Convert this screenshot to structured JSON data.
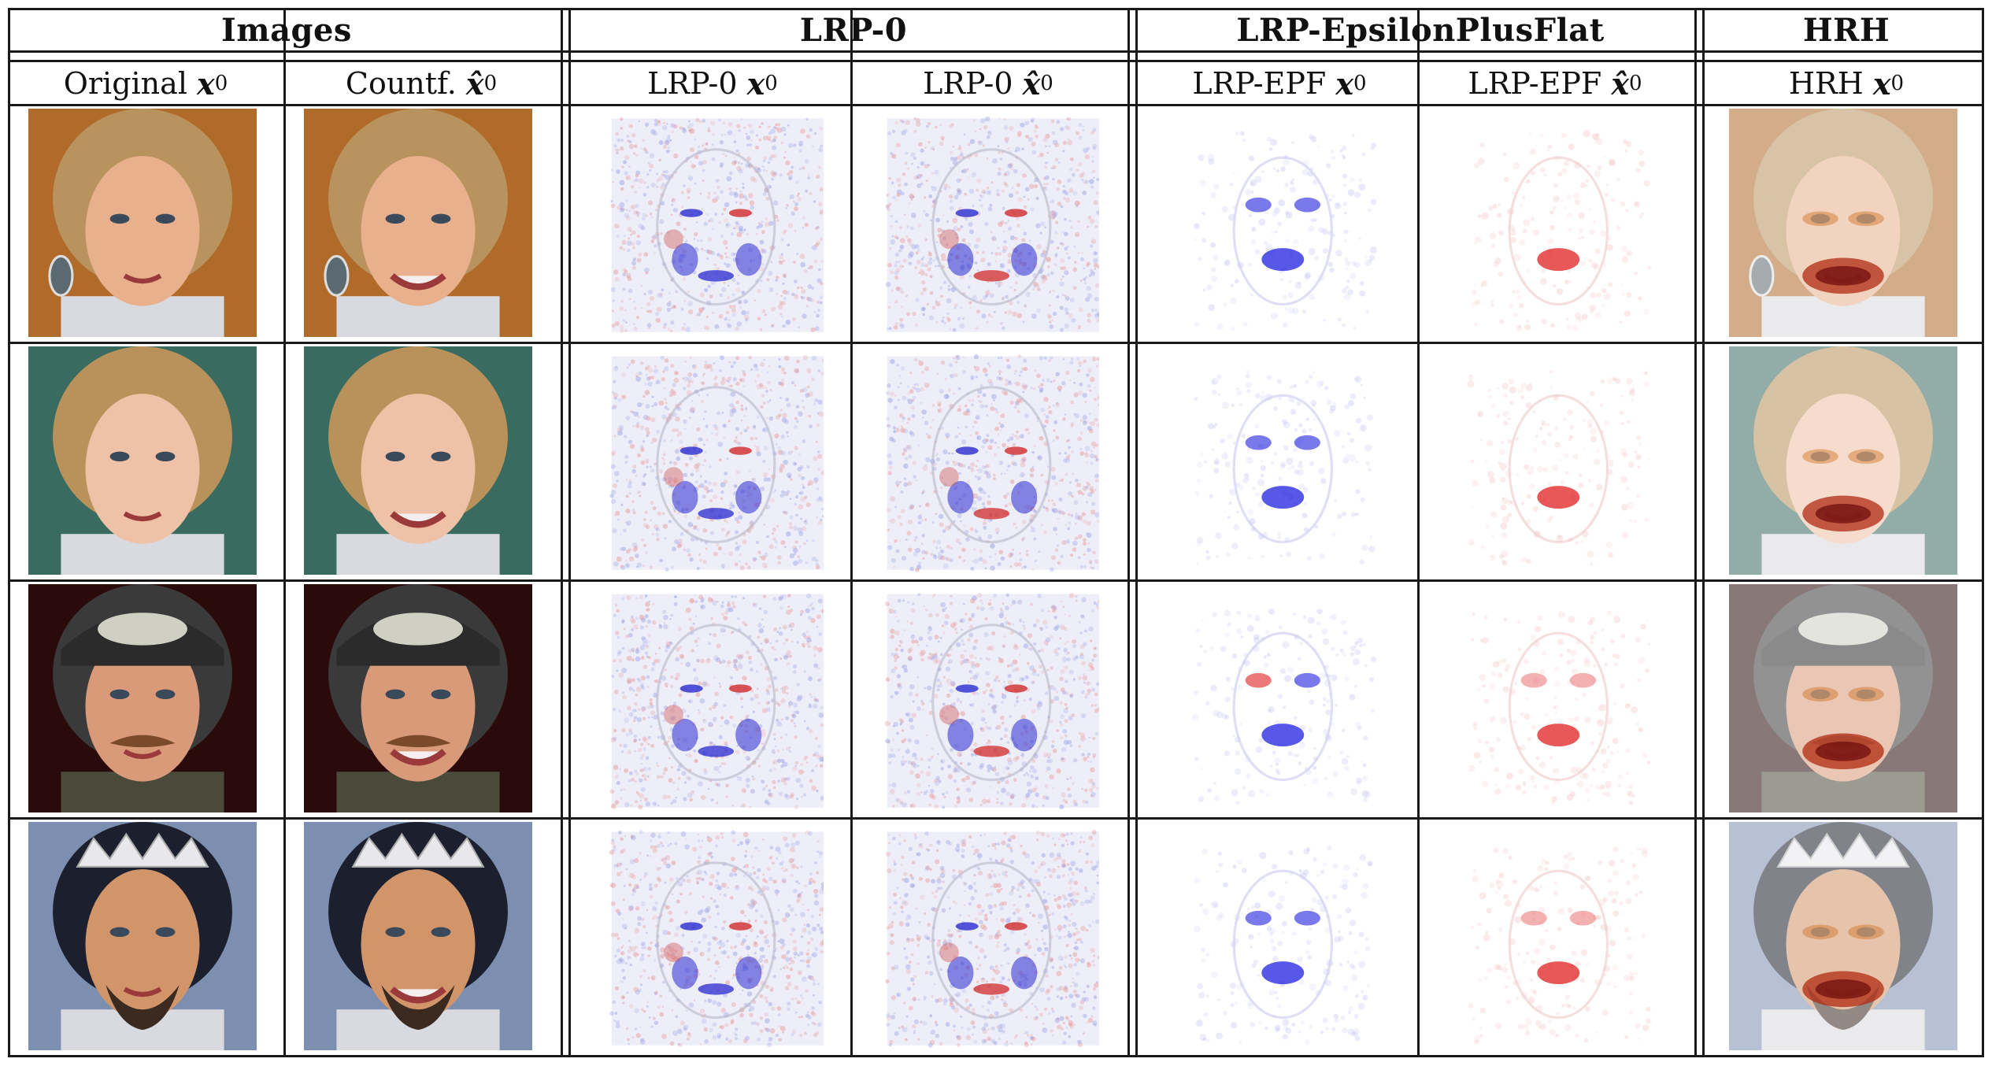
{
  "groups": [
    {
      "label": "Images"
    },
    {
      "label": "LRP-0"
    },
    {
      "label": "LRP-EpsilonPlusFlat"
    },
    {
      "label": "HRH"
    }
  ],
  "columns": [
    {
      "prefix": "Original",
      "var": "x",
      "hat": false,
      "sub": "0"
    },
    {
      "prefix": "Countf.",
      "var": "x̂",
      "hat": true,
      "sub": "0"
    },
    {
      "prefix": "LRP-0",
      "var": "x",
      "hat": false,
      "sub": "0"
    },
    {
      "prefix": "LRP-0",
      "var": "x̂",
      "hat": true,
      "sub": "0"
    },
    {
      "prefix": "LRP-EPF",
      "var": "x",
      "hat": false,
      "sub": "0"
    },
    {
      "prefix": "LRP-EPF",
      "var": "x̂",
      "hat": true,
      "sub": "0"
    },
    {
      "prefix": "HRH",
      "var": "x",
      "hat": false,
      "sub": "0"
    }
  ],
  "rows": [
    {
      "subject": "blonde woman with earrings, open mouth",
      "skin": "#e8b08c",
      "hair": "#b9935e",
      "bg": "#b06a2a"
    },
    {
      "subject": "blonde woman, slight smile",
      "skin": "#efc1a6",
      "hair": "#b8925a",
      "bg": "#3a6b60"
    },
    {
      "subject": "man with cap and moustache",
      "skin": "#d99a7a",
      "hair": "#3a3a3a",
      "bg": "#2a0a0a"
    },
    {
      "subject": "dark-haired man with tiara and beard",
      "skin": "#d2956a",
      "hair": "#1c1f2e",
      "bg": "#7d8fb0"
    }
  ]
}
